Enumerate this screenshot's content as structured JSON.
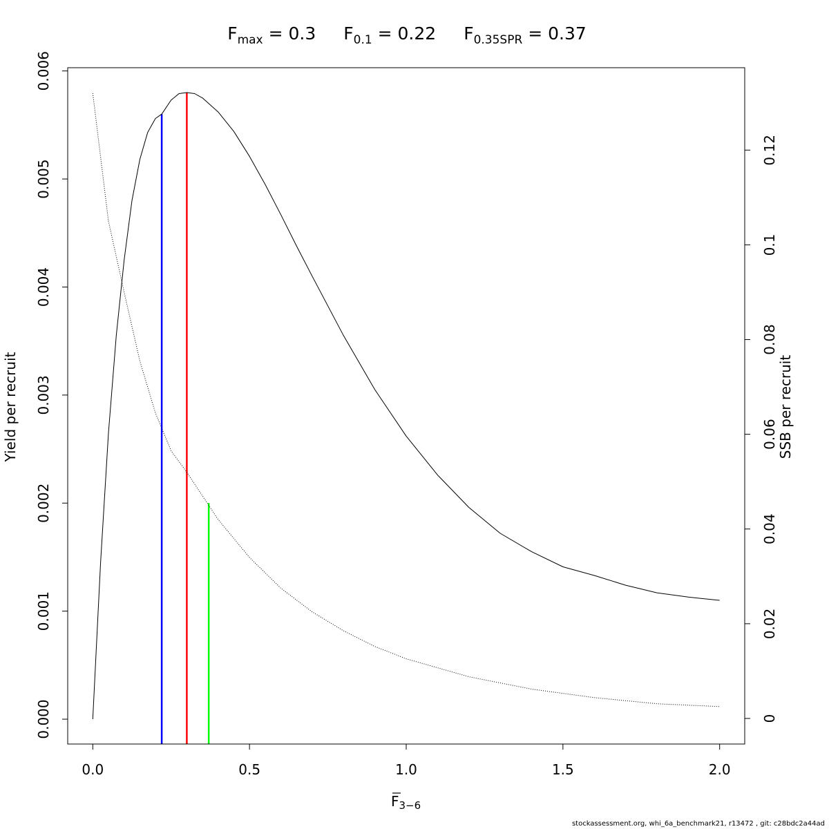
{
  "chart_data": {
    "type": "line",
    "title": {
      "fmax": {
        "base": "F",
        "sub": "max",
        "value": " = 0.3"
      },
      "f01": {
        "base": "F",
        "sub": "0.1",
        "value": " = 0.22"
      },
      "f035spr": {
        "base": "F",
        "sub": "0.35SPR",
        "value": " = 0.37"
      }
    },
    "xlabel": {
      "base": "F",
      "sub": "3−6"
    },
    "ylabel": "Yield per recruit",
    "y2label": "SSB per recruit",
    "xlim": [
      -0.08,
      2.08
    ],
    "ylim": [
      -0.00023,
      0.00603
    ],
    "y2lim": [
      -0.0054,
      0.1374
    ],
    "x_ticks": [
      0,
      0.5,
      1,
      1.5,
      2
    ],
    "x_tick_labels": [
      "0.0",
      "0.5",
      "1.0",
      "1.5",
      "2.0"
    ],
    "y_ticks": [
      0,
      0.001,
      0.002,
      0.003,
      0.004,
      0.005,
      0.006
    ],
    "y_tick_labels": [
      "0.000",
      "0.001",
      "0.002",
      "0.003",
      "0.004",
      "0.005",
      "0.006"
    ],
    "y2_ticks": [
      0,
      0.02,
      0.04,
      0.06,
      0.08,
      0.1,
      0.12
    ],
    "y2_tick_labels": [
      "0",
      "0.02",
      "0.04",
      "0.06",
      "0.08",
      "0.1",
      "0.12"
    ],
    "grid": false,
    "series": [
      {
        "axis": "left",
        "style": "solid",
        "color": "#000000",
        "x": [
          0,
          0.025,
          0.05,
          0.075,
          0.1,
          0.125,
          0.15,
          0.175,
          0.2,
          0.22,
          0.25,
          0.275,
          0.3,
          0.325,
          0.35,
          0.4,
          0.45,
          0.5,
          0.55,
          0.6,
          0.65,
          0.7,
          0.8,
          0.9,
          1.0,
          1.1,
          1.2,
          1.3,
          1.4,
          1.5,
          1.6,
          1.7,
          1.8,
          1.9,
          2.0
        ],
        "y": [
          0,
          0.00145,
          0.00265,
          0.00355,
          0.00425,
          0.0048,
          0.00518,
          0.00543,
          0.00556,
          0.0056,
          0.00573,
          0.00579,
          0.0058,
          0.00579,
          0.00575,
          0.00562,
          0.00544,
          0.00521,
          0.00495,
          0.00467,
          0.00438,
          0.0041,
          0.00355,
          0.00305,
          0.00262,
          0.00226,
          0.00196,
          0.00172,
          0.00155,
          0.00141,
          0.00133,
          0.00124,
          0.00117,
          0.00113,
          0.0011
        ]
      },
      {
        "axis": "right",
        "style": "dotted",
        "color": "#000000",
        "x": [
          0,
          0.05,
          0.1,
          0.15,
          0.2,
          0.25,
          0.3,
          0.35,
          0.4,
          0.5,
          0.6,
          0.7,
          0.8,
          0.9,
          1.0,
          1.2,
          1.4,
          1.6,
          1.8,
          2.0
        ],
        "y": [
          0.132,
          0.105,
          0.09,
          0.0755,
          0.0645,
          0.0565,
          0.052,
          0.047,
          0.042,
          0.034,
          0.0275,
          0.0225,
          0.0185,
          0.0152,
          0.0126,
          0.0088,
          0.0062,
          0.0044,
          0.0031,
          0.0025
        ]
      }
    ],
    "reference_lines": [
      {
        "name": "F0.1",
        "x": 0.22,
        "y_top": 0.0056,
        "color": "#0000ff"
      },
      {
        "name": "Fmax",
        "x": 0.3,
        "y_top": 0.0058,
        "color": "#ff0000"
      },
      {
        "name": "F0.35SPR",
        "x": 0.37,
        "y_top": 0.002,
        "color": "#00ff00"
      }
    ]
  },
  "footer": "stockassessment.org, whi_6a_benchmark21, r13472 , git: c28bdc2a44ad"
}
